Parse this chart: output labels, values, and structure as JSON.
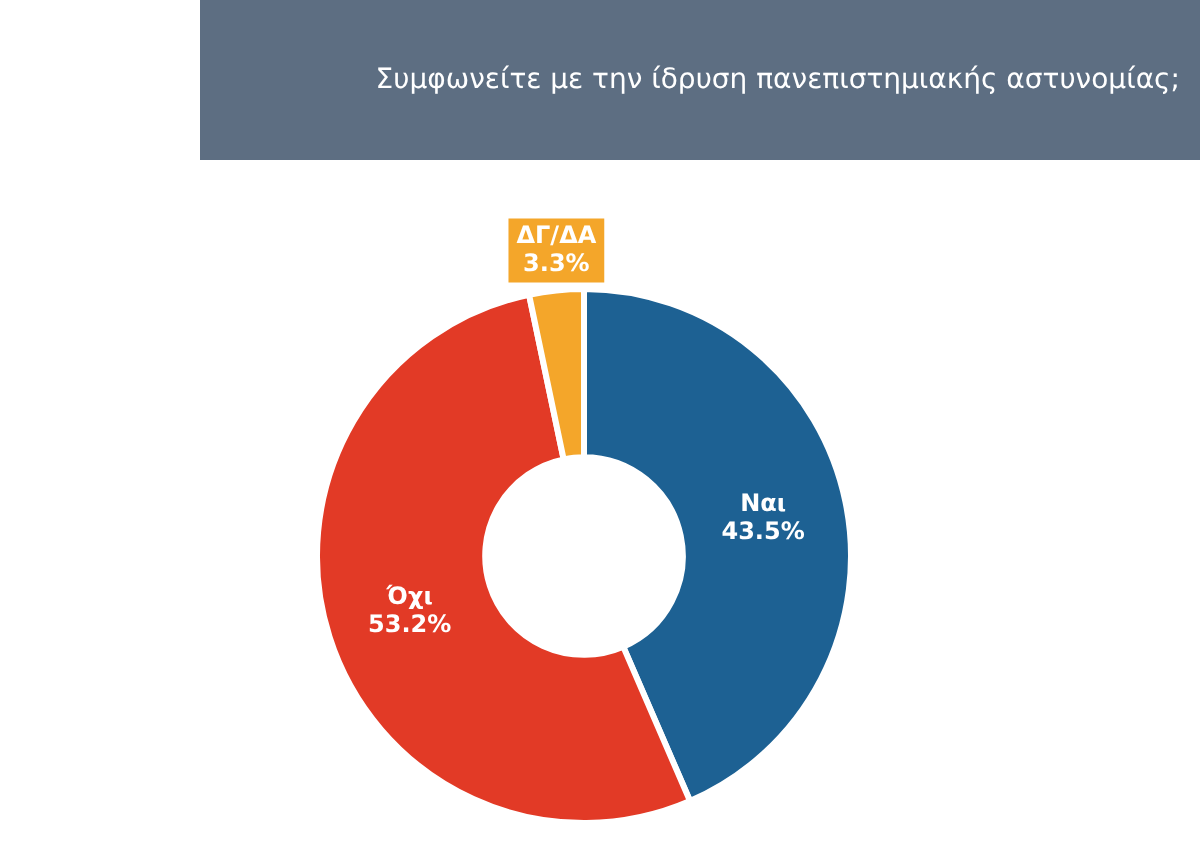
{
  "chart_data": {
    "type": "donut",
    "title": "Συμφωνείτε με την ίδρυση πανεπιστημιακής αστυνομίας;",
    "categories": [
      "Ναι",
      "Όχι",
      "ΔΓ/ΔΑ"
    ],
    "values": [
      43.5,
      53.2,
      3.3
    ],
    "value_labels": [
      "43.5%",
      "53.2%",
      "3.3%"
    ],
    "colors": [
      "#1d6193",
      "#e23a26",
      "#f4a62a"
    ],
    "legend": false
  }
}
